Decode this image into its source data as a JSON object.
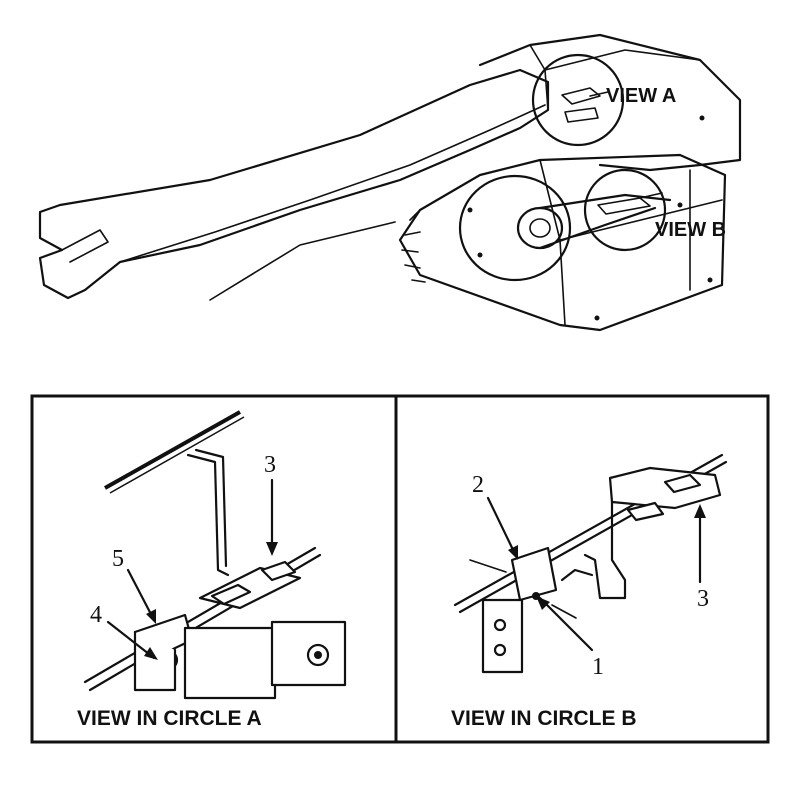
{
  "overview": {
    "view_a_label": "VIEW A",
    "view_b_label": "VIEW B"
  },
  "panel_a": {
    "caption": "VIEW IN CIRCLE A",
    "callouts": [
      "3",
      "5",
      "4"
    ]
  },
  "panel_b": {
    "caption": "VIEW IN CIRCLE B",
    "callouts": [
      "2",
      "3",
      "1"
    ]
  }
}
